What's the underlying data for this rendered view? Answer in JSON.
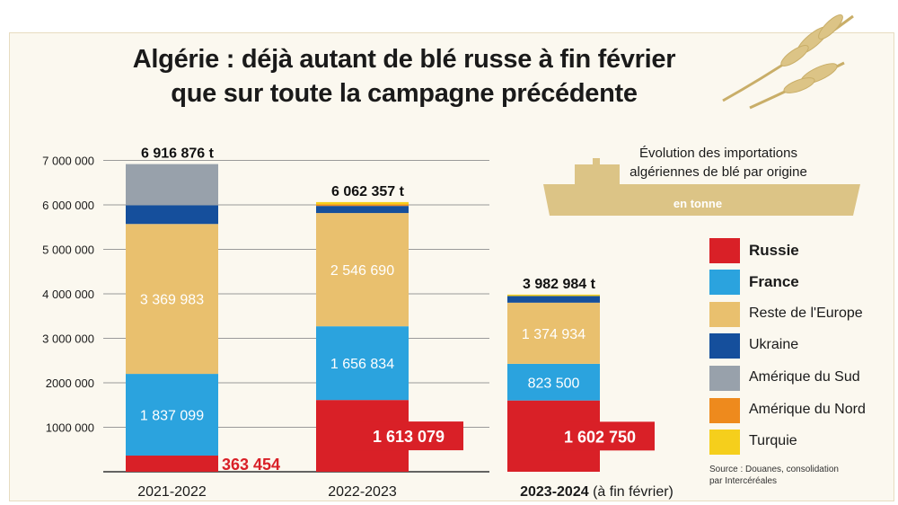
{
  "title": {
    "line1": "Algérie : déjà autant de blé russe à fin février",
    "line2": "que sur toute la campagne précédente"
  },
  "subtitle": {
    "line1": "Évolution des importations",
    "line2": "algériennes de blé par origine",
    "unit": "en tonne"
  },
  "source": {
    "line1": "Source : Douanes, consolidation",
    "line2": "par Intercéréales"
  },
  "colors": {
    "Russie": "#d92027",
    "France": "#2ba3de",
    "Reste de l'Europe": "#e9c06e",
    "Ukraine": "#154f9c",
    "Amérique du Sud": "#98a1ab",
    "Amérique du Nord": "#ee8a1d",
    "Turquie": "#f5cf1c",
    "accent": "#dcc486"
  },
  "legend": [
    {
      "name": "Russie",
      "bold": true
    },
    {
      "name": "France",
      "bold": true
    },
    {
      "name": "Reste de l'Europe",
      "bold": false
    },
    {
      "name": "Ukraine",
      "bold": false
    },
    {
      "name": "Amérique du Sud",
      "bold": false
    },
    {
      "name": "Amérique du Nord",
      "bold": false
    },
    {
      "name": "Turquie",
      "bold": false
    }
  ],
  "chart_data": {
    "type": "bar",
    "stacked": true,
    "categories": [
      "2021-2022",
      "2022-2023",
      "2023-2024 (à fin février)"
    ],
    "category_labels": [
      {
        "bold": "",
        "rest": "2021-2022"
      },
      {
        "bold": "",
        "rest": "2022-2023"
      },
      {
        "bold": "2023-2024",
        "rest": " (à fin février)"
      }
    ],
    "ylim": [
      0,
      7000000
    ],
    "yticks": [
      1000000,
      2000000,
      3000000,
      4000000,
      5000000,
      6000000,
      7000000
    ],
    "ytick_labels": [
      "1000 000",
      "2000 000",
      "3 000 000",
      "4 000 000",
      "5 000 000",
      "6 000 000",
      "7 000 000"
    ],
    "grid": true,
    "legend_position": "right",
    "totals": [
      6916876,
      6062357,
      3982984
    ],
    "total_labels": [
      "6 916 876 t",
      "6 062 357 t",
      "3 982 984 t"
    ],
    "series": [
      {
        "name": "Russie",
        "values": [
          363454,
          1613079,
          1602750
        ],
        "labels": [
          "363 454",
          "1 613 079",
          "1 602 750"
        ]
      },
      {
        "name": "France",
        "values": [
          1837099,
          1656834,
          823500
        ],
        "labels": [
          "1 837 099",
          "1 656 834",
          "823 500"
        ]
      },
      {
        "name": "Reste de l'Europe",
        "values": [
          3369983,
          2546690,
          1374934
        ],
        "labels": [
          "3 369 983",
          "2 546 690",
          "1 374 934"
        ]
      },
      {
        "name": "Ukraine",
        "values": [
          420000,
          160000,
          150000
        ],
        "labels": [
          "",
          "",
          ""
        ]
      },
      {
        "name": "Amérique du Sud",
        "values": [
          926340,
          0,
          0
        ],
        "labels": [
          "",
          "",
          ""
        ]
      },
      {
        "name": "Amérique du Nord",
        "values": [
          0,
          35000,
          0
        ],
        "labels": [
          "",
          "",
          ""
        ]
      },
      {
        "name": "Turquie",
        "values": [
          0,
          50754,
          31800
        ],
        "labels": [
          "",
          "",
          ""
        ]
      }
    ]
  }
}
